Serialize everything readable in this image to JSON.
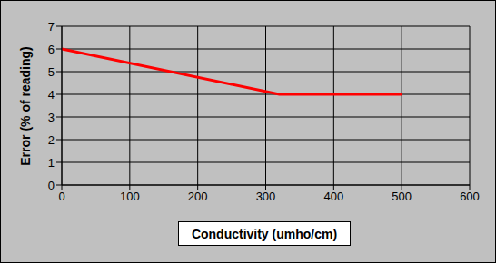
{
  "chart_data": {
    "type": "line",
    "x_label": "Conductivity (umho/cm)",
    "y_label": "Error (% of reading)",
    "x": [
      0,
      320,
      500
    ],
    "values": [
      6,
      4,
      4
    ],
    "color": "#ff0000",
    "xlim": [
      0,
      600
    ],
    "ylim": [
      0,
      7
    ],
    "xticks": [
      0,
      100,
      200,
      300,
      400,
      500,
      600
    ],
    "yticks": [
      0,
      1,
      2,
      3,
      4,
      5,
      6,
      7
    ],
    "grid": true
  }
}
